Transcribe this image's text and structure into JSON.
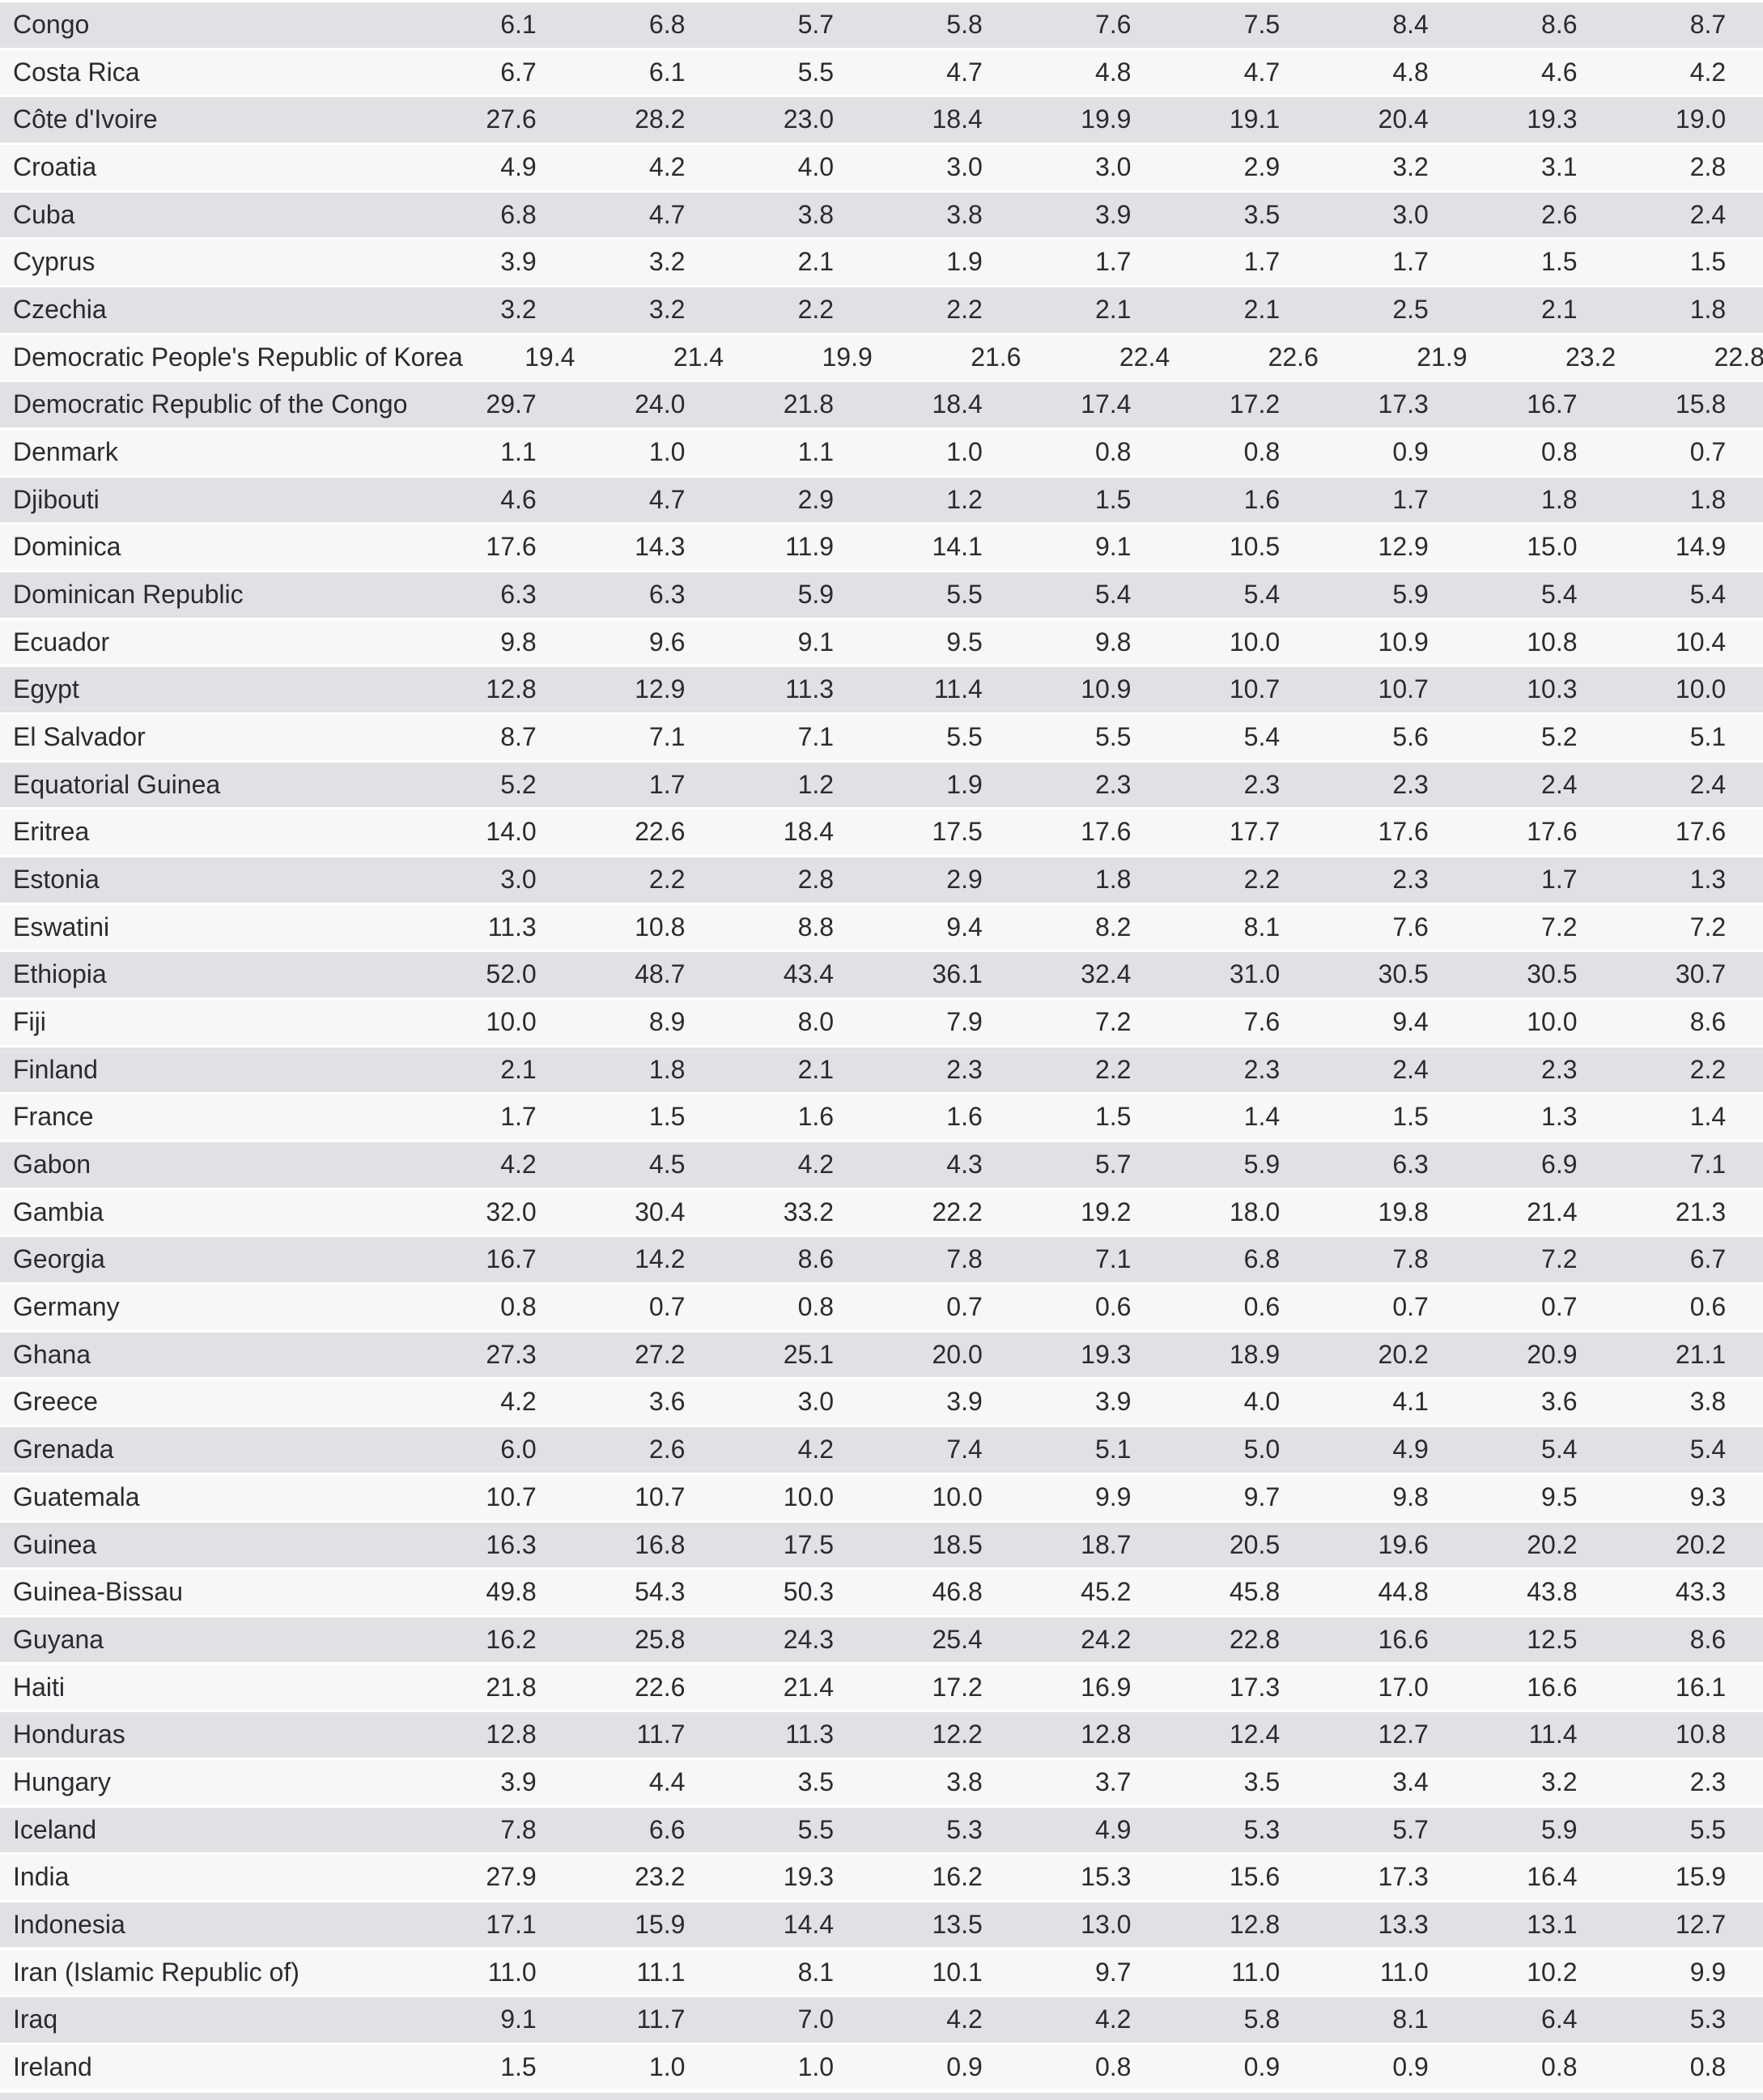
{
  "table": {
    "description_visible_content": "Alternating-striped data table of countries with nine numeric value columns, cropped with no header row visible",
    "num_value_columns": 9,
    "partial_next_row_visible": true,
    "colors": {
      "band_gray": "#e1e1e4",
      "band_light": "#f7f7f7",
      "text": "#2b2b2e",
      "background": "#ffffff"
    },
    "rows": [
      {
        "country": "Congo",
        "values": [
          "6.1",
          "6.8",
          "5.7",
          "5.8",
          "7.6",
          "7.5",
          "8.4",
          "8.6",
          "8.7"
        ]
      },
      {
        "country": "Costa Rica",
        "values": [
          "6.7",
          "6.1",
          "5.5",
          "4.7",
          "4.8",
          "4.7",
          "4.8",
          "4.6",
          "4.2"
        ]
      },
      {
        "country": "Côte d'Ivoire",
        "values": [
          "27.6",
          "28.2",
          "23.0",
          "18.4",
          "19.9",
          "19.1",
          "20.4",
          "19.3",
          "19.0"
        ]
      },
      {
        "country": "Croatia",
        "values": [
          "4.9",
          "4.2",
          "4.0",
          "3.0",
          "3.0",
          "2.9",
          "3.2",
          "3.1",
          "2.8"
        ]
      },
      {
        "country": "Cuba",
        "values": [
          "6.8",
          "4.7",
          "3.8",
          "3.8",
          "3.9",
          "3.5",
          "3.0",
          "2.6",
          "2.4"
        ]
      },
      {
        "country": "Cyprus",
        "values": [
          "3.9",
          "3.2",
          "2.1",
          "1.9",
          "1.7",
          "1.7",
          "1.7",
          "1.5",
          "1.5"
        ]
      },
      {
        "country": "Czechia",
        "values": [
          "3.2",
          "3.2",
          "2.2",
          "2.2",
          "2.1",
          "2.1",
          "2.5",
          "2.1",
          "1.8"
        ]
      },
      {
        "country": "Democratic People's Republic of Korea",
        "values": [
          "19.4",
          "21.4",
          "19.9",
          "21.6",
          "22.4",
          "22.6",
          "21.9",
          "23.2",
          "22.8"
        ]
      },
      {
        "country": "Democratic Republic of the Congo",
        "values": [
          "29.7",
          "24.0",
          "21.8",
          "18.4",
          "17.4",
          "17.2",
          "17.3",
          "16.7",
          "15.8"
        ]
      },
      {
        "country": "Denmark",
        "values": [
          "1.1",
          "1.0",
          "1.1",
          "1.0",
          "0.8",
          "0.8",
          "0.9",
          "0.8",
          "0.7"
        ]
      },
      {
        "country": "Djibouti",
        "values": [
          "4.6",
          "4.7",
          "2.9",
          "1.2",
          "1.5",
          "1.6",
          "1.7",
          "1.8",
          "1.8"
        ]
      },
      {
        "country": "Dominica",
        "values": [
          "17.6",
          "14.3",
          "11.9",
          "14.1",
          "9.1",
          "10.5",
          "12.9",
          "15.0",
          "14.9"
        ]
      },
      {
        "country": "Dominican Republic",
        "values": [
          "6.3",
          "6.3",
          "5.9",
          "5.5",
          "5.4",
          "5.4",
          "5.9",
          "5.4",
          "5.4"
        ]
      },
      {
        "country": "Ecuador",
        "values": [
          "9.8",
          "9.6",
          "9.1",
          "9.5",
          "9.8",
          "10.0",
          "10.9",
          "10.8",
          "10.4"
        ]
      },
      {
        "country": "Egypt",
        "values": [
          "12.8",
          "12.9",
          "11.3",
          "11.4",
          "10.9",
          "10.7",
          "10.7",
          "10.3",
          "10.0"
        ]
      },
      {
        "country": "El Salvador",
        "values": [
          "8.7",
          "7.1",
          "7.1",
          "5.5",
          "5.5",
          "5.4",
          "5.6",
          "5.2",
          "5.1"
        ]
      },
      {
        "country": "Equatorial Guinea",
        "values": [
          "5.2",
          "1.7",
          "1.2",
          "1.9",
          "2.3",
          "2.3",
          "2.3",
          "2.4",
          "2.4"
        ]
      },
      {
        "country": "Eritrea",
        "values": [
          "14.0",
          "22.6",
          "18.4",
          "17.5",
          "17.6",
          "17.7",
          "17.6",
          "17.6",
          "17.6"
        ]
      },
      {
        "country": "Estonia",
        "values": [
          "3.0",
          "2.2",
          "2.8",
          "2.9",
          "1.8",
          "2.2",
          "2.3",
          "1.7",
          "1.3"
        ]
      },
      {
        "country": "Eswatini",
        "values": [
          "11.3",
          "10.8",
          "8.8",
          "9.4",
          "8.2",
          "8.1",
          "7.6",
          "7.2",
          "7.2"
        ]
      },
      {
        "country": "Ethiopia",
        "values": [
          "52.0",
          "48.7",
          "43.4",
          "36.1",
          "32.4",
          "31.0",
          "30.5",
          "30.5",
          "30.7"
        ]
      },
      {
        "country": "Fiji",
        "values": [
          "10.0",
          "8.9",
          "8.0",
          "7.9",
          "7.2",
          "7.6",
          "9.4",
          "10.0",
          "8.6"
        ]
      },
      {
        "country": "Finland",
        "values": [
          "2.1",
          "1.8",
          "2.1",
          "2.3",
          "2.2",
          "2.3",
          "2.4",
          "2.3",
          "2.2"
        ]
      },
      {
        "country": "France",
        "values": [
          "1.7",
          "1.5",
          "1.6",
          "1.6",
          "1.5",
          "1.4",
          "1.5",
          "1.3",
          "1.4"
        ]
      },
      {
        "country": "Gabon",
        "values": [
          "4.2",
          "4.5",
          "4.2",
          "4.3",
          "5.7",
          "5.9",
          "6.3",
          "6.9",
          "7.1"
        ]
      },
      {
        "country": "Gambia",
        "values": [
          "32.0",
          "30.4",
          "33.2",
          "22.2",
          "19.2",
          "18.0",
          "19.8",
          "21.4",
          "21.3"
        ]
      },
      {
        "country": "Georgia",
        "values": [
          "16.7",
          "14.2",
          "8.6",
          "7.8",
          "7.1",
          "6.8",
          "7.8",
          "7.2",
          "6.7"
        ]
      },
      {
        "country": "Germany",
        "values": [
          "0.8",
          "0.7",
          "0.8",
          "0.7",
          "0.6",
          "0.6",
          "0.7",
          "0.7",
          "0.6"
        ]
      },
      {
        "country": "Ghana",
        "values": [
          "27.3",
          "27.2",
          "25.1",
          "20.0",
          "19.3",
          "18.9",
          "20.2",
          "20.9",
          "21.1"
        ]
      },
      {
        "country": "Greece",
        "values": [
          "4.2",
          "3.6",
          "3.0",
          "3.9",
          "3.9",
          "4.0",
          "4.1",
          "3.6",
          "3.8"
        ]
      },
      {
        "country": "Grenada",
        "values": [
          "6.0",
          "2.6",
          "4.2",
          "7.4",
          "5.1",
          "5.0",
          "4.9",
          "5.4",
          "5.4"
        ]
      },
      {
        "country": "Guatemala",
        "values": [
          "10.7",
          "10.7",
          "10.0",
          "10.0",
          "9.9",
          "9.7",
          "9.8",
          "9.5",
          "9.3"
        ]
      },
      {
        "country": "Guinea",
        "values": [
          "16.3",
          "16.8",
          "17.5",
          "18.5",
          "18.7",
          "20.5",
          "19.6",
          "20.2",
          "20.2"
        ]
      },
      {
        "country": "Guinea-Bissau",
        "values": [
          "49.8",
          "54.3",
          "50.3",
          "46.8",
          "45.2",
          "45.8",
          "44.8",
          "43.8",
          "43.3"
        ]
      },
      {
        "country": "Guyana",
        "values": [
          "16.2",
          "25.8",
          "24.3",
          "25.4",
          "24.2",
          "22.8",
          "16.6",
          "12.5",
          "8.6"
        ]
      },
      {
        "country": "Haiti",
        "values": [
          "21.8",
          "22.6",
          "21.4",
          "17.2",
          "16.9",
          "17.3",
          "17.0",
          "16.6",
          "16.1"
        ]
      },
      {
        "country": "Honduras",
        "values": [
          "12.8",
          "11.7",
          "11.3",
          "12.2",
          "12.8",
          "12.4",
          "12.7",
          "11.4",
          "10.8"
        ]
      },
      {
        "country": "Hungary",
        "values": [
          "3.9",
          "4.4",
          "3.5",
          "3.8",
          "3.7",
          "3.5",
          "3.4",
          "3.2",
          "2.3"
        ]
      },
      {
        "country": "Iceland",
        "values": [
          "7.8",
          "6.6",
          "5.5",
          "5.3",
          "4.9",
          "5.3",
          "5.7",
          "5.9",
          "5.5"
        ]
      },
      {
        "country": "India",
        "values": [
          "27.9",
          "23.2",
          "19.3",
          "16.2",
          "15.3",
          "15.6",
          "17.3",
          "16.4",
          "15.9"
        ]
      },
      {
        "country": "Indonesia",
        "values": [
          "17.1",
          "15.9",
          "14.4",
          "13.5",
          "13.0",
          "12.8",
          "13.3",
          "13.1",
          "12.7"
        ]
      },
      {
        "country": "Iran (Islamic Republic of)",
        "values": [
          "11.0",
          "11.1",
          "8.1",
          "10.1",
          "9.7",
          "11.0",
          "11.0",
          "10.2",
          "9.9"
        ]
      },
      {
        "country": "Iraq",
        "values": [
          "9.1",
          "11.7",
          "7.0",
          "4.2",
          "4.2",
          "5.8",
          "8.1",
          "6.4",
          "5.3"
        ]
      },
      {
        "country": "Ireland",
        "values": [
          "1.5",
          "1.0",
          "1.0",
          "0.9",
          "0.8",
          "0.9",
          "0.9",
          "0.8",
          "0.8"
        ]
      }
    ]
  }
}
